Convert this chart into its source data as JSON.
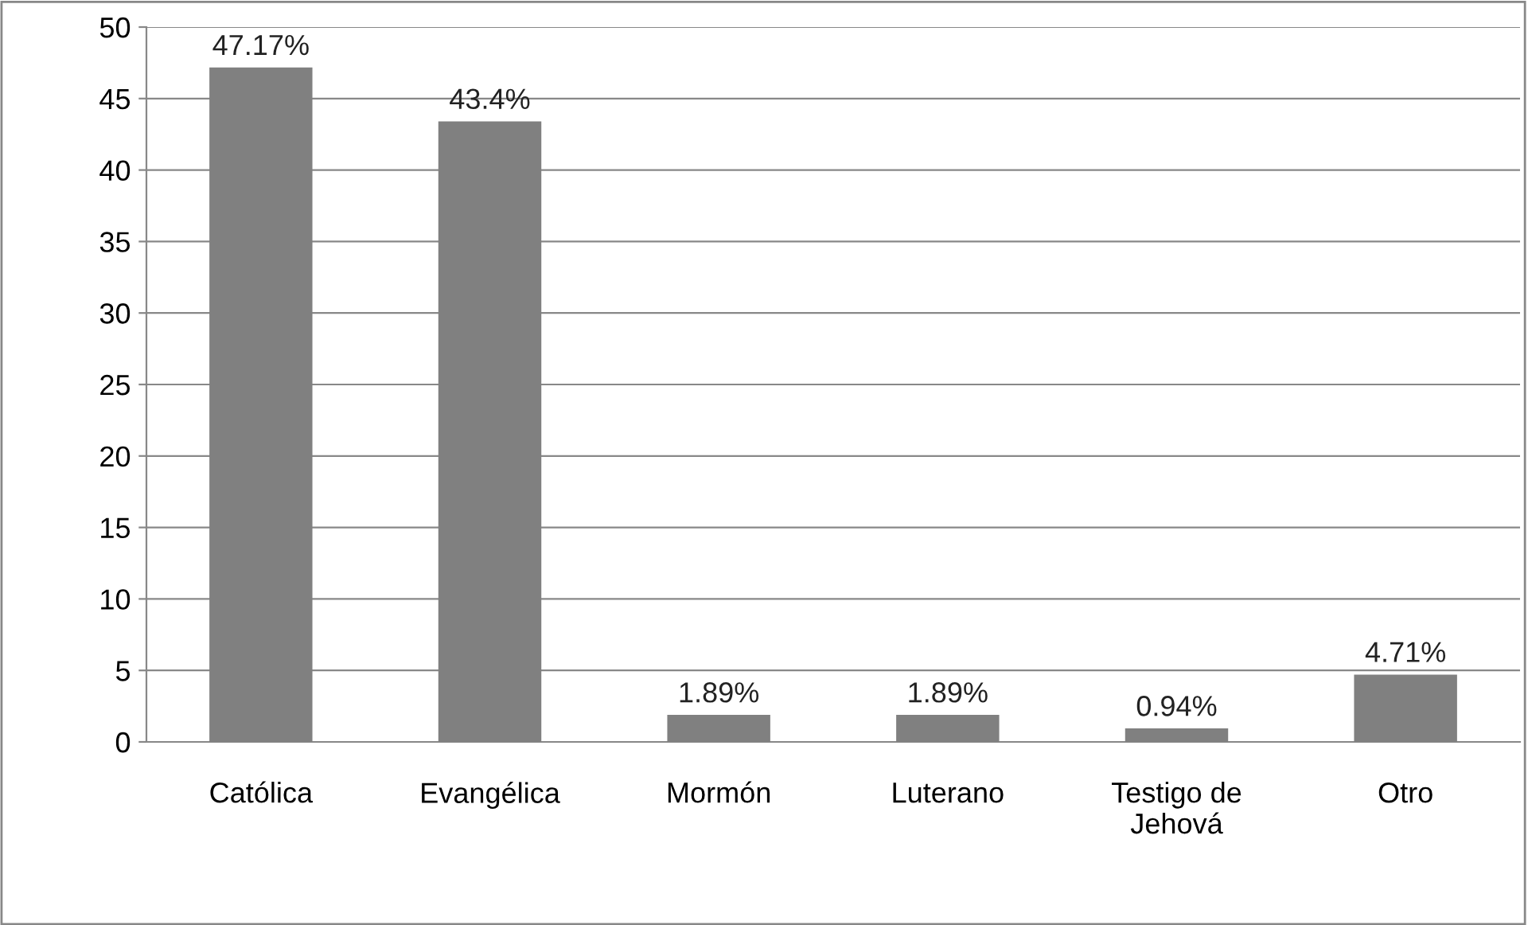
{
  "chart_data": {
    "type": "bar",
    "categories": [
      "Católica",
      "Evangélica",
      "Mormón",
      "Luterano",
      "Testigo de\nJehová",
      "Otro"
    ],
    "values": [
      47.17,
      43.4,
      1.89,
      1.89,
      0.94,
      4.71
    ],
    "value_labels": [
      "47.17%",
      "43.4%",
      "1.89%",
      "1.89%",
      "0.94%",
      "4.71%"
    ],
    "color": "#808080",
    "ylim": [
      0,
      50
    ],
    "yticks": [
      0,
      5,
      10,
      15,
      20,
      25,
      30,
      35,
      40,
      45,
      50
    ],
    "grid": "y",
    "legend": false
  }
}
